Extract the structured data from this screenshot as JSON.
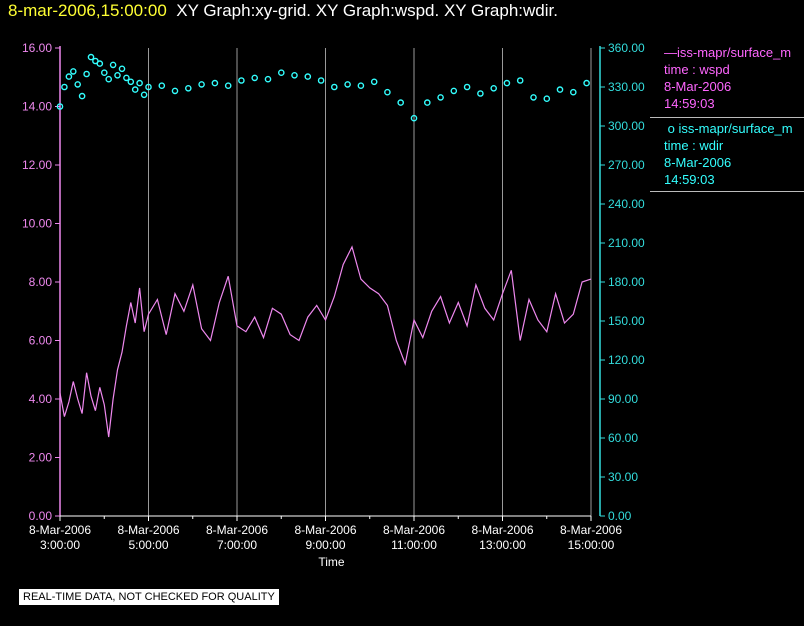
{
  "header": {
    "timestamp": "8-mar-2006,15:00:00",
    "graphs": "XY Graph:xy-grid.  XY Graph:wspd.  XY Graph:wdir."
  },
  "legend": {
    "series1": {
      "name": "iss-mapr/surface_m",
      "field": "time : wspd",
      "date": "8-Mar-2006",
      "time": "14:59:03"
    },
    "series2": {
      "name": "iss-mapr/surface_m",
      "field": "time : wdir",
      "date": "8-Mar-2006",
      "time": "14:59:03"
    }
  },
  "footer_note": "REAL-TIME DATA, NOT CHECKED FOR QUALITY",
  "chart_data": {
    "type": "line",
    "xlabel": "Time",
    "x_ticks": [
      {
        "h": 3,
        "date": "8-Mar-2006",
        "time": "3:00:00"
      },
      {
        "h": 5,
        "date": "8-Mar-2006",
        "time": "5:00:00"
      },
      {
        "h": 7,
        "date": "8-Mar-2006",
        "time": "7:00:00"
      },
      {
        "h": 9,
        "date": "8-Mar-2006",
        "time": "9:00:00"
      },
      {
        "h": 11,
        "date": "8-Mar-2006",
        "time": "11:00:00"
      },
      {
        "h": 13,
        "date": "8-Mar-2006",
        "time": "13:00:00"
      },
      {
        "h": 15,
        "date": "8-Mar-2006",
        "time": "15:00:00"
      }
    ],
    "xlim_hours": [
      3,
      15
    ],
    "y_left": {
      "ticks": [
        "0.00",
        "2.00",
        "4.00",
        "6.00",
        "8.00",
        "10.00",
        "12.00",
        "14.00",
        "16.00"
      ],
      "ylim": [
        0,
        16
      ],
      "color": "#ee88ee"
    },
    "y_right": {
      "ticks": [
        "0.00",
        "30.00",
        "60.00",
        "90.00",
        "120.00",
        "150.00",
        "180.00",
        "210.00",
        "240.00",
        "270.00",
        "300.00",
        "330.00",
        "360.00"
      ],
      "ylim": [
        0,
        360
      ],
      "color": "#33dddd"
    },
    "grid": "vertical at labeled hours",
    "series": [
      {
        "name": "wspd",
        "axis": "left",
        "style": "line",
        "color": "#ee88ee",
        "x": [
          3.0,
          3.1,
          3.2,
          3.3,
          3.4,
          3.5,
          3.6,
          3.7,
          3.8,
          3.9,
          4.0,
          4.1,
          4.2,
          4.3,
          4.4,
          4.5,
          4.6,
          4.7,
          4.8,
          4.9,
          5.0,
          5.2,
          5.4,
          5.6,
          5.8,
          6.0,
          6.2,
          6.4,
          6.6,
          6.8,
          7.0,
          7.2,
          7.4,
          7.6,
          7.8,
          8.0,
          8.2,
          8.4,
          8.6,
          8.8,
          9.0,
          9.2,
          9.4,
          9.6,
          9.8,
          10.0,
          10.2,
          10.4,
          10.6,
          10.8,
          11.0,
          11.2,
          11.4,
          11.6,
          11.8,
          12.0,
          12.2,
          12.4,
          12.6,
          12.8,
          13.0,
          13.2,
          13.4,
          13.6,
          13.8,
          14.0,
          14.2,
          14.4,
          14.6,
          14.8,
          15.0
        ],
        "y": [
          4.2,
          3.4,
          3.9,
          4.6,
          4.0,
          3.5,
          4.9,
          4.1,
          3.6,
          4.4,
          3.8,
          2.7,
          4.0,
          5.0,
          5.6,
          6.5,
          7.3,
          6.6,
          7.8,
          6.3,
          6.9,
          7.4,
          6.2,
          7.6,
          7.0,
          7.9,
          6.4,
          6.0,
          7.3,
          8.2,
          6.5,
          6.3,
          6.8,
          6.1,
          7.1,
          6.9,
          6.2,
          6.0,
          6.8,
          7.2,
          6.7,
          7.5,
          8.6,
          9.2,
          8.1,
          7.8,
          7.6,
          7.2,
          6.0,
          5.2,
          6.7,
          6.1,
          7.0,
          7.5,
          6.6,
          7.3,
          6.5,
          7.9,
          7.1,
          6.7,
          7.6,
          8.4,
          6.0,
          7.4,
          6.7,
          6.3,
          7.6,
          6.6,
          6.9,
          8.0,
          8.1
        ]
      },
      {
        "name": "wdir",
        "axis": "right",
        "style": "scatter",
        "color": "#33ffff",
        "x": [
          3.0,
          3.1,
          3.2,
          3.3,
          3.4,
          3.5,
          3.6,
          3.7,
          3.8,
          3.9,
          4.0,
          4.1,
          4.2,
          4.3,
          4.4,
          4.5,
          4.6,
          4.7,
          4.8,
          4.9,
          5.0,
          5.3,
          5.6,
          5.9,
          6.2,
          6.5,
          6.8,
          7.1,
          7.4,
          7.7,
          8.0,
          8.3,
          8.6,
          8.9,
          9.2,
          9.5,
          9.8,
          10.1,
          10.4,
          10.7,
          11.0,
          11.3,
          11.6,
          11.9,
          12.2,
          12.5,
          12.8,
          13.1,
          13.4,
          13.7,
          14.0,
          14.3,
          14.6,
          14.9
        ],
        "y": [
          315,
          330,
          338,
          342,
          332,
          323,
          340,
          353,
          350,
          348,
          341,
          336,
          347,
          339,
          344,
          337,
          334,
          328,
          333,
          324,
          330,
          331,
          327,
          329,
          332,
          333,
          331,
          335,
          337,
          336,
          341,
          339,
          338,
          335,
          330,
          332,
          331,
          334,
          326,
          318,
          306,
          318,
          322,
          327,
          330,
          325,
          329,
          333,
          335,
          322,
          321,
          328,
          326,
          333
        ]
      }
    ]
  }
}
